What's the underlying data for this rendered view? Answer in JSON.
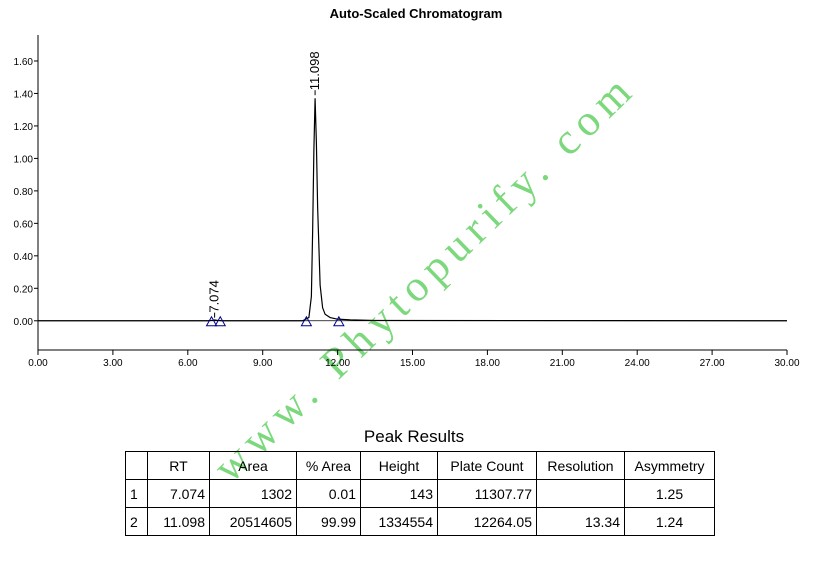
{
  "chart_data": {
    "type": "line",
    "title": "Auto-Scaled Chromatogram",
    "color": "#000000",
    "x": [
      0,
      2,
      6.8,
      7.0,
      7.074,
      7.2,
      7.4,
      10.6,
      10.85,
      10.95,
      11.0,
      11.05,
      11.098,
      11.15,
      11.2,
      11.3,
      11.4,
      11.5,
      11.7,
      12.0,
      12.5,
      13.5,
      30
    ],
    "values": [
      0,
      0,
      0,
      0.003,
      0.005,
      0.002,
      0,
      0,
      0.02,
      0.15,
      0.55,
      1.05,
      1.37,
      1.1,
      0.7,
      0.22,
      0.08,
      0.04,
      0.02,
      0.01,
      0.006,
      0.002,
      0
    ],
    "xlim": [
      0,
      30
    ],
    "ylim": [
      -0.18,
      1.76
    ],
    "xticks": [
      {
        "value": 0,
        "label": "0.00"
      },
      {
        "value": 3,
        "label": "3.00"
      },
      {
        "value": 6,
        "label": "6.00"
      },
      {
        "value": 9,
        "label": "9.00"
      },
      {
        "value": 12,
        "label": "12.00"
      },
      {
        "value": 15,
        "label": "15.00"
      },
      {
        "value": 18,
        "label": "18.00"
      },
      {
        "value": 21,
        "label": "21.00"
      },
      {
        "value": 24,
        "label": "24.00"
      },
      {
        "value": 27,
        "label": "27.00"
      },
      {
        "value": 30,
        "label": "30.00"
      }
    ],
    "yticks": [
      {
        "value": 0,
        "label": "0.00"
      },
      {
        "value": 0.2,
        "label": "0.20"
      },
      {
        "value": 0.4,
        "label": "0.40"
      },
      {
        "value": 0.6,
        "label": "0.60"
      },
      {
        "value": 0.8,
        "label": "0.80"
      },
      {
        "value": 1.0,
        "label": "1.00"
      },
      {
        "value": 1.2,
        "label": "1.20"
      },
      {
        "value": 1.4,
        "label": "1.40"
      },
      {
        "value": 1.6,
        "label": "1.60"
      }
    ],
    "peak_labels": [
      {
        "x": 7.074,
        "y": 0.05,
        "label": "7.074"
      },
      {
        "x": 11.098,
        "y": 1.42,
        "label": "11.098"
      }
    ],
    "baseline_markers": [
      6.95,
      7.3,
      10.75,
      12.05
    ],
    "marker_color": "#00008b",
    "watermark": "www. Phytopurify. com"
  },
  "table": {
    "title": "Peak Results",
    "columns": [
      "RT",
      "Area",
      "% Area",
      "Height",
      "Plate Count",
      "Resolution",
      "Asymmetry"
    ],
    "rows": [
      [
        "1",
        "7.074",
        "1302",
        "0.01",
        "143",
        "11307.77",
        null,
        "1.25"
      ],
      [
        "2",
        "11.098",
        "20514605",
        "99.99",
        "1334554",
        "12264.05",
        "13.34",
        "1.24"
      ]
    ]
  }
}
